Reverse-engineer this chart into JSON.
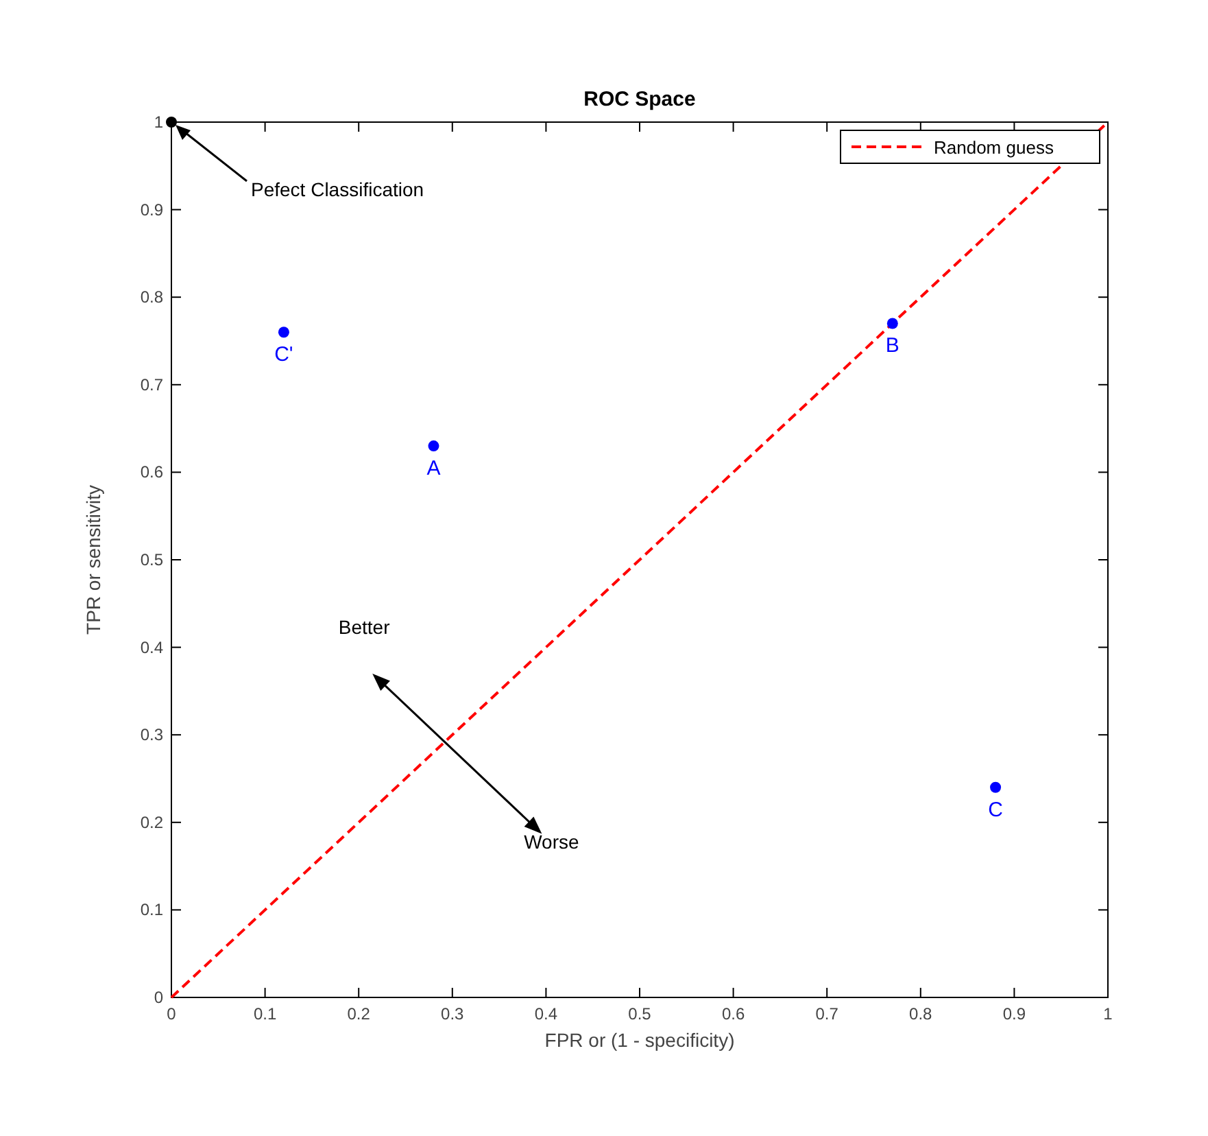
{
  "chart_data": {
    "type": "scatter",
    "title": "ROC Space",
    "xlabel": "FPR or (1 - specificity)",
    "ylabel": "TPR or sensitivity",
    "xlim": [
      0,
      1
    ],
    "ylim": [
      0,
      1
    ],
    "xticks": [
      0,
      0.1,
      0.2,
      0.3,
      0.4,
      0.5,
      0.6,
      0.7,
      0.8,
      0.9,
      1
    ],
    "yticks": [
      0,
      0.1,
      0.2,
      0.3,
      0.4,
      0.5,
      0.6,
      0.7,
      0.8,
      0.9,
      1
    ],
    "grid": false,
    "legend": "top right",
    "marker": "circle",
    "series": [
      {
        "type": "line",
        "name": "Random guess",
        "color": "#ff0000",
        "line_style": "dashed",
        "marker": "none",
        "x": [
          0,
          1
        ],
        "values": [
          0,
          1
        ]
      },
      {
        "color": "#000000",
        "x": [
          0
        ],
        "values": [
          1
        ]
      },
      {
        "color": "#0000ff",
        "x": [
          0.12,
          0.28,
          0.77,
          0.88
        ],
        "values": [
          0.76,
          0.63,
          0.77,
          0.24
        ]
      }
    ],
    "annotations": [
      "Pefect Classification",
      {
        "text": "C'",
        "x": 0.12,
        "y": 0.76
      },
      {
        "text": "A",
        "x": 0.28,
        "y": 0.63
      },
      {
        "text": "B",
        "x": 0.77,
        "y": 0.77
      },
      {
        "text": "C",
        "x": 0.88,
        "y": 0.24
      },
      "Better",
      "Worse"
    ]
  }
}
